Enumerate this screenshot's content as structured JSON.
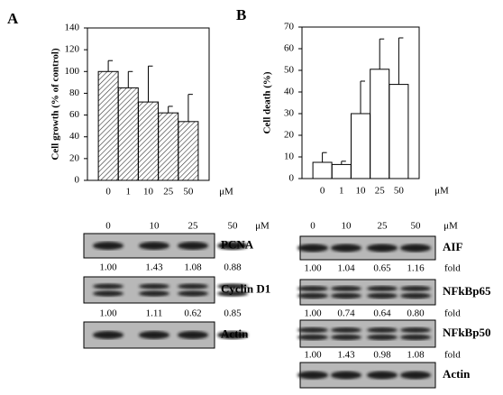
{
  "panel_labels": [
    "A",
    "B"
  ],
  "chart_data": [
    {
      "type": "bar",
      "y_label": "Cell growth (% of control)",
      "x_unit": "μM",
      "categories": [
        "0",
        "1",
        "10",
        "25",
        "50"
      ],
      "values": [
        100,
        85,
        72,
        62,
        54
      ],
      "errors": [
        10,
        15,
        33,
        6,
        25
      ],
      "fill": "hatch",
      "ylim": [
        0,
        140
      ],
      "yticks": [
        0,
        20,
        40,
        60,
        80,
        100,
        120,
        140
      ]
    },
    {
      "type": "bar",
      "y_label": "Cell death (%)",
      "x_unit": "μM",
      "categories": [
        "0",
        "1",
        "10",
        "25",
        "50"
      ],
      "values": [
        7.5,
        6.5,
        30,
        50.5,
        43.5
      ],
      "errors": [
        4.5,
        1.5,
        15,
        14,
        21.5
      ],
      "fill": "#ffffff",
      "ylim": [
        0,
        70
      ],
      "yticks": [
        0,
        10,
        20,
        30,
        40,
        50,
        60,
        70
      ]
    }
  ],
  "blots": [
    {
      "doses": [
        "0",
        "10",
        "25",
        "50"
      ],
      "unit": "μM",
      "rows": [
        {
          "label": "PCNA",
          "folds": [
            "1.00",
            "1.43",
            "1.08",
            "0.88"
          ]
        },
        {
          "label": "Cyclin D1",
          "folds": [
            "1.00",
            "1.11",
            "0.62",
            "0.85"
          ]
        },
        {
          "label": "Actin"
        }
      ]
    },
    {
      "doses": [
        "0",
        "10",
        "25",
        "50"
      ],
      "unit": "μM",
      "fold_label": "fold",
      "rows": [
        {
          "label": "AIF",
          "folds": [
            "1.00",
            "1.04",
            "0.65",
            "1.16"
          ]
        },
        {
          "label": "NFkBp65",
          "folds": [
            "1.00",
            "0.74",
            "0.64",
            "0.80"
          ]
        },
        {
          "label": "NFkBp50",
          "folds": [
            "1.00",
            "1.43",
            "0.98",
            "1.08"
          ]
        },
        {
          "label": "Actin"
        }
      ]
    }
  ]
}
